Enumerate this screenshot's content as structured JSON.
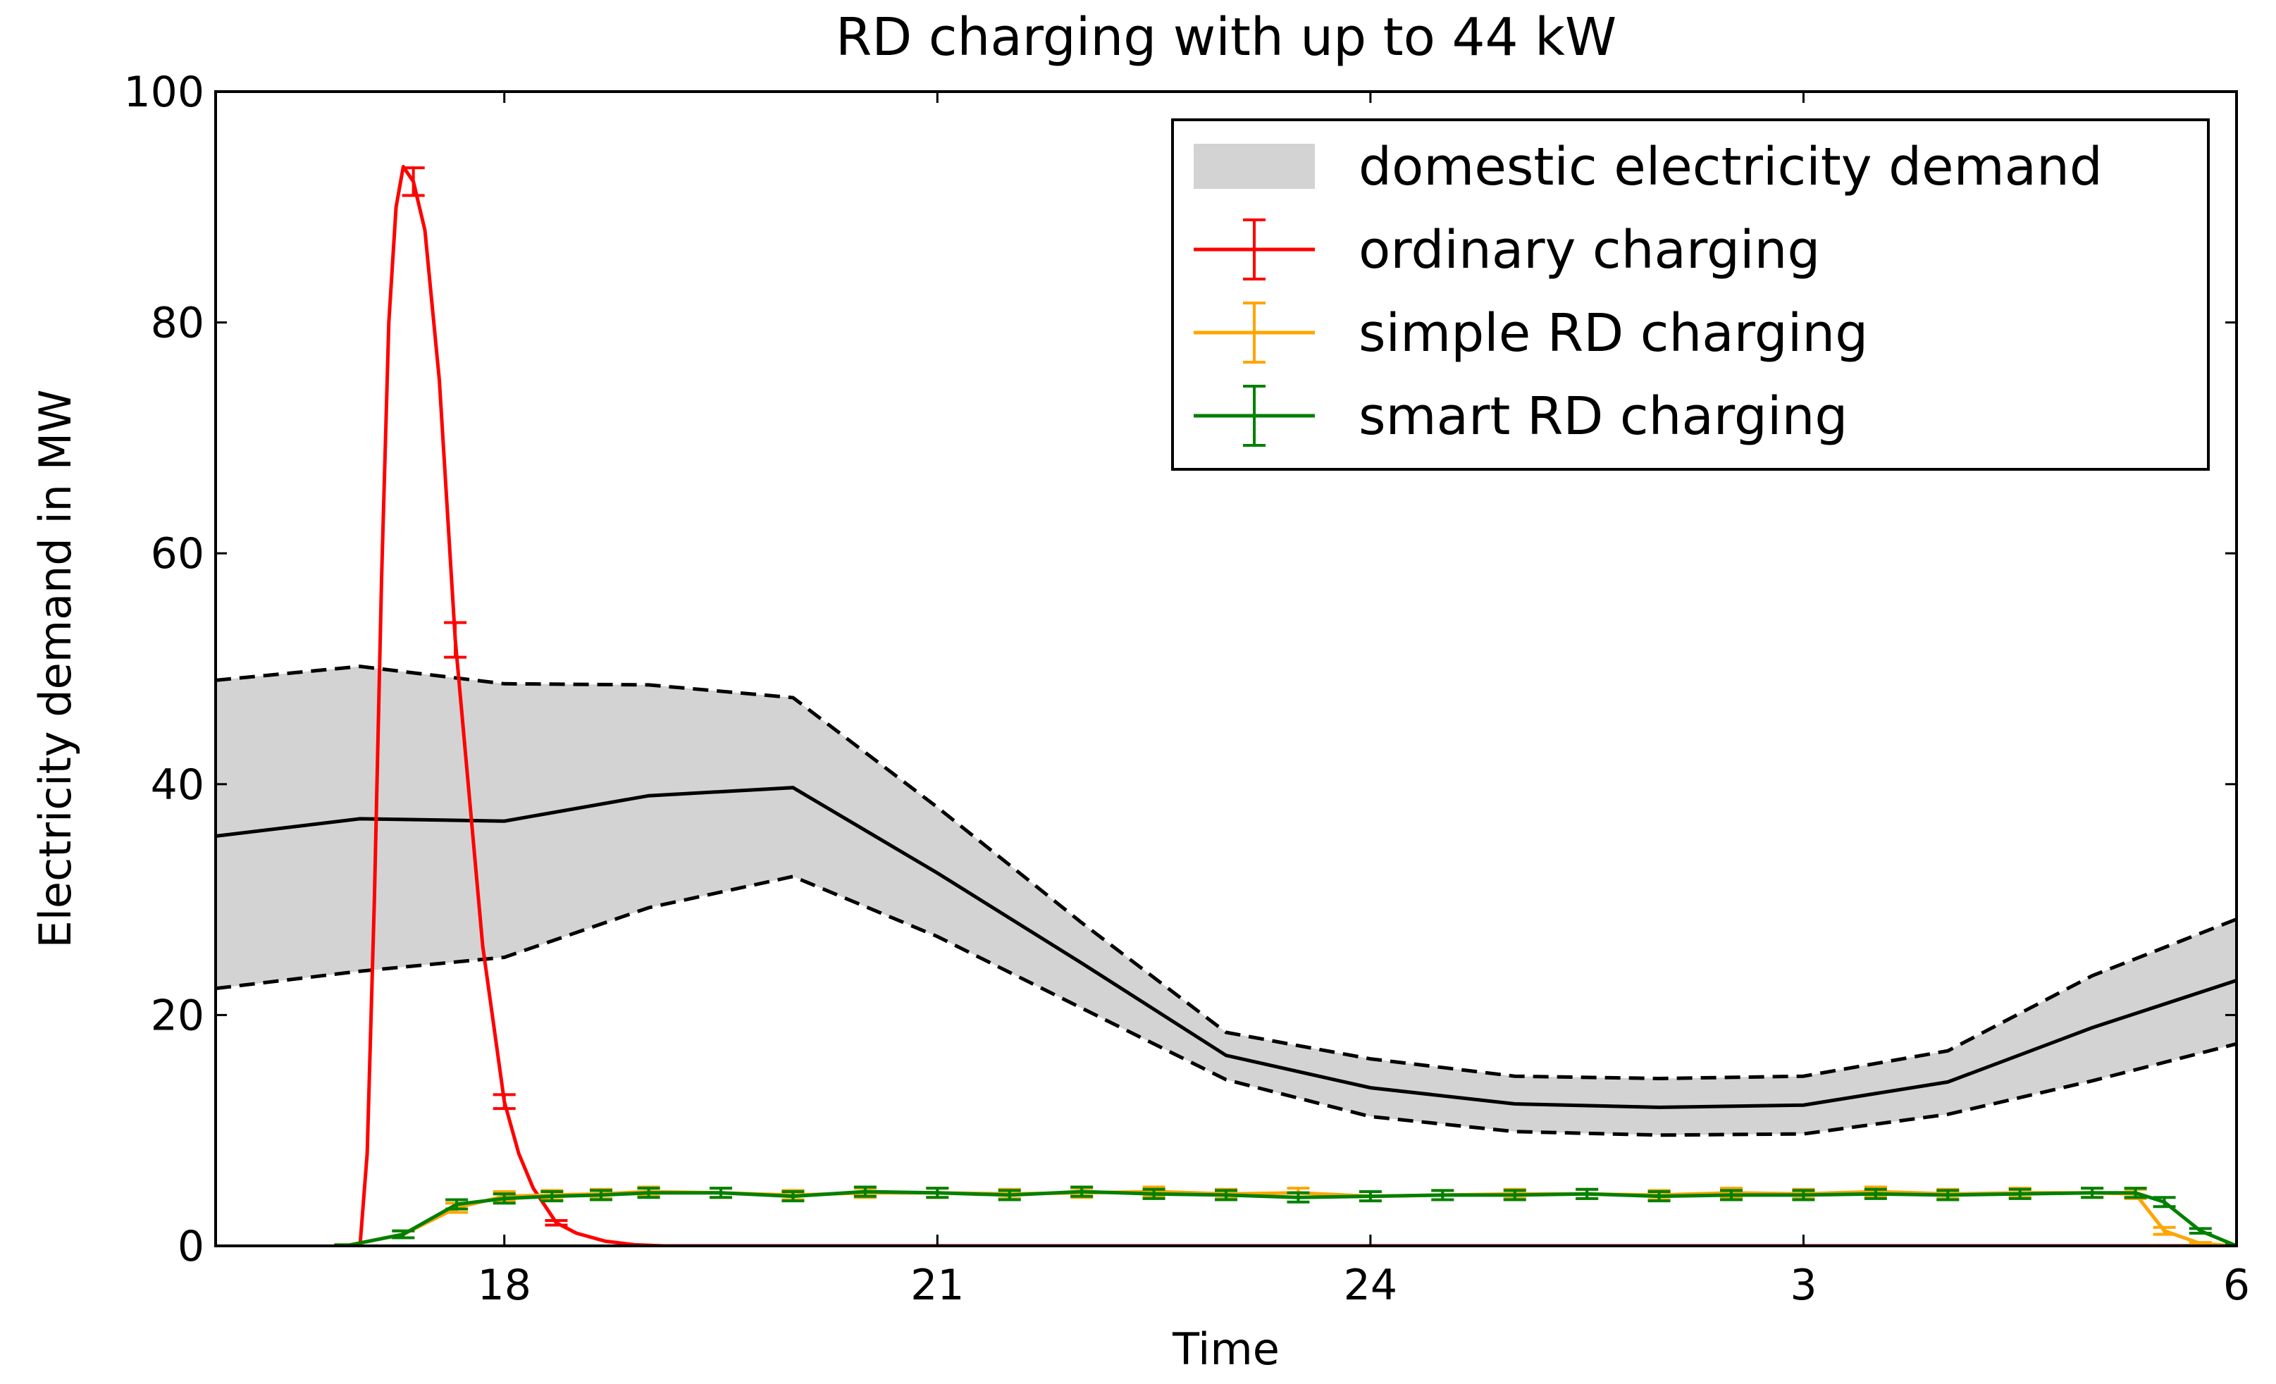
{
  "chart_data": {
    "type": "line",
    "title": "RD charging with up to 44 kW",
    "xlabel": "Time",
    "ylabel": "Electricity demand in MW",
    "xlim": [
      16,
      30
    ],
    "ylim": [
      0,
      100
    ],
    "xticks": [
      18,
      {
        "value": 21,
        "label": "21"
      },
      24,
      {
        "value": 27,
        "label": "3"
      },
      {
        "value": 30,
        "label": "6"
      }
    ],
    "yticks": [
      0,
      20,
      40,
      60,
      80,
      100
    ],
    "legend": "upper right",
    "band": {
      "name": "domestic electricity demand",
      "color": "#d3d3d3",
      "x": [
        16,
        17,
        18,
        19,
        20,
        21,
        22,
        23,
        24,
        25,
        26,
        27,
        28,
        29,
        30
      ],
      "mean": [
        35.5,
        37,
        36.8,
        39,
        39.7,
        32.3,
        24.5,
        16.5,
        13.7,
        12.3,
        12.0,
        12.2,
        14.2,
        18.9,
        23
      ],
      "upper": [
        49,
        50.2,
        48.7,
        48.6,
        47.5,
        38,
        28,
        18.5,
        16.2,
        14.7,
        14.5,
        14.7,
        16.9,
        23.4,
        28.3
      ],
      "lower": [
        22.3,
        23.8,
        25,
        29.3,
        32,
        26.8,
        20.6,
        14.4,
        11.2,
        9.9,
        9.6,
        9.7,
        11.4,
        14.3,
        17.5
      ]
    },
    "series": [
      {
        "name": "ordinary charging",
        "color": "#ff0000",
        "x": [
          16.9,
          17.0,
          17.05,
          17.1,
          17.15,
          17.2,
          17.25,
          17.3,
          17.37,
          17.45,
          17.55,
          17.66,
          17.75,
          17.85,
          18.0,
          18.1,
          18.2,
          18.36,
          18.5,
          18.7,
          18.9,
          19.1,
          30
        ],
        "values": [
          0,
          0,
          8,
          30,
          58,
          80,
          90,
          93.5,
          92.2,
          88,
          75,
          52.5,
          40,
          26,
          12.5,
          8,
          5,
          2,
          1.1,
          0.4,
          0.1,
          0,
          0
        ],
        "errors": [
          null,
          null,
          null,
          null,
          null,
          null,
          null,
          null,
          1.2,
          null,
          null,
          1.5,
          null,
          null,
          0.6,
          null,
          null,
          0.2,
          null,
          null,
          null,
          null,
          null
        ]
      },
      {
        "name": "simple RD charging",
        "color": "#ffa500",
        "x": [
          16.9,
          17.3,
          17.67,
          18,
          18.33,
          18.67,
          19,
          19.5,
          20,
          20.5,
          21,
          21.5,
          22,
          22.5,
          23,
          23.5,
          24,
          24.5,
          25,
          25.5,
          26,
          26.5,
          27,
          27.5,
          28,
          28.5,
          29,
          29.3,
          29.5,
          29.75,
          30
        ],
        "values": [
          0,
          1,
          3.3,
          4.3,
          4.4,
          4.5,
          4.7,
          4.6,
          4.4,
          4.6,
          4.6,
          4.5,
          4.6,
          4.7,
          4.5,
          4.6,
          4.3,
          4.4,
          4.5,
          4.5,
          4.4,
          4.6,
          4.5,
          4.7,
          4.5,
          4.6,
          4.6,
          4.5,
          1.3,
          0.2,
          0
        ],
        "errors": [
          0.1,
          0.3,
          0.4,
          0.4,
          0.4,
          0.4,
          0.4,
          0.4,
          0.4,
          0.4,
          0.4,
          0.4,
          0.4,
          0.4,
          0.4,
          0.4,
          0.4,
          0.4,
          0.4,
          0.4,
          0.4,
          0.4,
          0.4,
          0.4,
          0.4,
          0.4,
          0.4,
          0.4,
          0.3,
          0.1,
          0.1
        ]
      },
      {
        "name": "smart RD charging",
        "color": "#008000",
        "x": [
          16.9,
          17.3,
          17.67,
          18,
          18.33,
          18.67,
          19,
          19.5,
          20,
          20.5,
          21,
          21.5,
          22,
          22.5,
          23,
          23.5,
          24,
          24.5,
          25,
          25.5,
          26,
          26.5,
          27,
          27.5,
          28,
          28.5,
          29,
          29.3,
          29.5,
          29.75,
          30
        ],
        "values": [
          0,
          1,
          3.6,
          4.1,
          4.3,
          4.4,
          4.6,
          4.6,
          4.3,
          4.7,
          4.6,
          4.4,
          4.7,
          4.5,
          4.4,
          4.2,
          4.3,
          4.4,
          4.4,
          4.5,
          4.3,
          4.4,
          4.4,
          4.5,
          4.4,
          4.5,
          4.6,
          4.6,
          3.8,
          1.3,
          0
        ],
        "errors": [
          0.1,
          0.3,
          0.4,
          0.4,
          0.4,
          0.4,
          0.4,
          0.4,
          0.4,
          0.4,
          0.4,
          0.4,
          0.4,
          0.4,
          0.4,
          0.4,
          0.4,
          0.4,
          0.4,
          0.4,
          0.4,
          0.4,
          0.4,
          0.4,
          0.4,
          0.4,
          0.4,
          0.4,
          0.4,
          0.2,
          0.1
        ]
      }
    ]
  }
}
